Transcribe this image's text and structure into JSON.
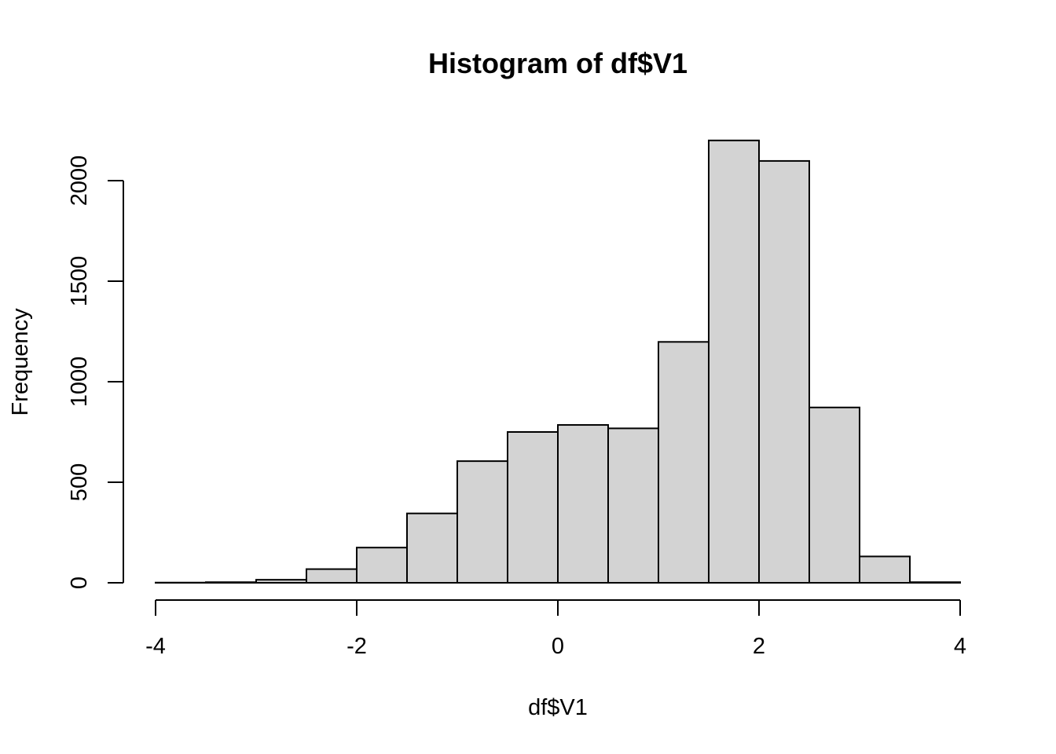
{
  "chart_data": {
    "type": "bar",
    "title": "Histogram of df$V1",
    "xlabel": "df$V1",
    "ylabel": "Frequency",
    "xlim": [
      -4,
      4
    ],
    "ylim": [
      0,
      2200
    ],
    "x_ticks": [
      "-4",
      "-2",
      "0",
      "2",
      "4"
    ],
    "y_ticks": [
      "0",
      "500",
      "1000",
      "1500",
      "2000"
    ],
    "bin_edges": [
      -4,
      -3.5,
      -3,
      -2.5,
      -2,
      -1.5,
      -1,
      -0.5,
      0,
      0.5,
      1,
      1.5,
      2,
      2.5,
      3,
      3.5,
      4
    ],
    "values": [
      1,
      3,
      15,
      68,
      175,
      345,
      605,
      750,
      785,
      768,
      1198,
      2200,
      2098,
      872,
      131,
      3
    ],
    "bar_color": "#d3d3d3",
    "grid": false
  }
}
